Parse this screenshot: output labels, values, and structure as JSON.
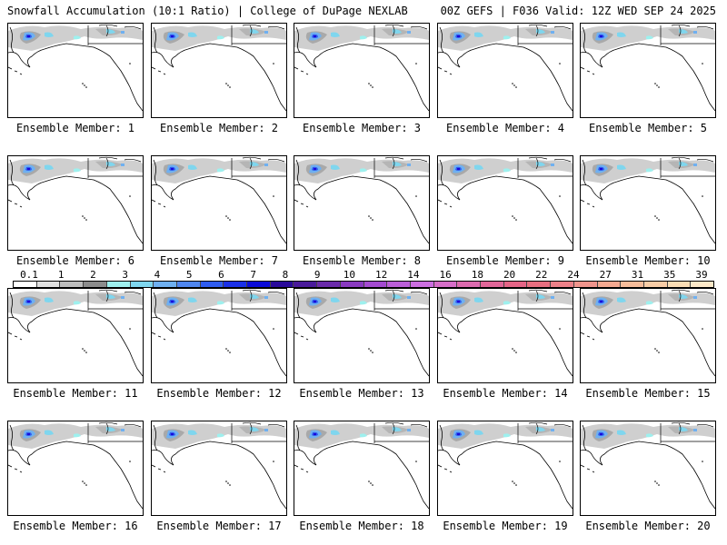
{
  "header": {
    "title": "Snowfall Accumulation (10:1 Ratio) | College of DuPage NEXLAB",
    "run_info": "00Z GEFS | F036 Valid: 12Z WED SEP 24 2025"
  },
  "panels": [
    {
      "label": "Ensemble Member: 1"
    },
    {
      "label": "Ensemble Member: 2"
    },
    {
      "label": "Ensemble Member: 3"
    },
    {
      "label": "Ensemble Member: 4"
    },
    {
      "label": "Ensemble Member: 5"
    },
    {
      "label": "Ensemble Member: 6"
    },
    {
      "label": "Ensemble Member: 7"
    },
    {
      "label": "Ensemble Member: 8"
    },
    {
      "label": "Ensemble Member: 9"
    },
    {
      "label": "Ensemble Member: 10"
    },
    {
      "label": "Ensemble Member: 11"
    },
    {
      "label": "Ensemble Member: 12"
    },
    {
      "label": "Ensemble Member: 13"
    },
    {
      "label": "Ensemble Member: 14"
    },
    {
      "label": "Ensemble Member: 15"
    },
    {
      "label": "Ensemble Member: 16"
    },
    {
      "label": "Ensemble Member: 17"
    },
    {
      "label": "Ensemble Member: 18"
    },
    {
      "label": "Ensemble Member: 19"
    },
    {
      "label": "Ensemble Member: 20"
    }
  ],
  "colorbar": {
    "labels": [
      "0.1",
      "1",
      "2",
      "3",
      "4",
      "5",
      "6",
      "7",
      "8",
      "9",
      "10",
      "12",
      "14",
      "16",
      "18",
      "20",
      "22",
      "24",
      "27",
      "31",
      "35",
      "39"
    ],
    "colors": [
      "#ffffff",
      "#e0e0e0",
      "#bdbdbd",
      "#8c8c8c",
      "#9ef0ee",
      "#7fd6ee",
      "#6fb0f0",
      "#4f86f0",
      "#2f5cf0",
      "#1a30e8",
      "#0a0ad8",
      "#2a0a9a",
      "#4a1a9a",
      "#6a2aaa",
      "#8a3ac0",
      "#a44ad0",
      "#bb5ed8",
      "#cc6ee0",
      "#d66ec8",
      "#dc6aae",
      "#e06698",
      "#e46486",
      "#e86e80",
      "#ec8088",
      "#f0948c",
      "#f4a890",
      "#f6bc9a",
      "#f8cca6",
      "#fadcb4",
      "#fce8c8"
    ]
  }
}
